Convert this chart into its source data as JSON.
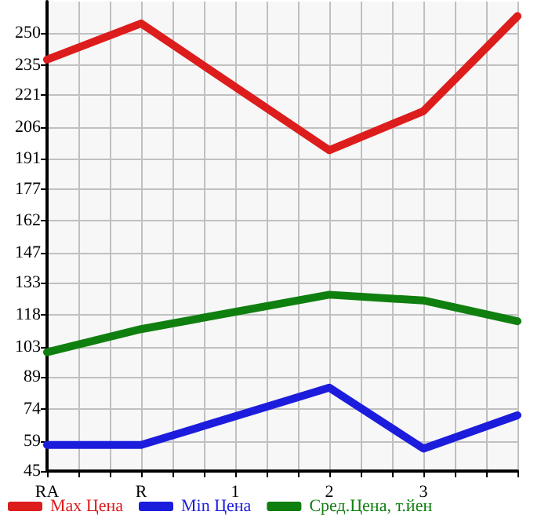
{
  "chart_data": {
    "type": "line",
    "categories": [
      "RA",
      "R",
      "1",
      "2",
      "3",
      null
    ],
    "series": [
      {
        "name": "Max Цена",
        "color": "#dd1c1c",
        "values": [
          237.5,
          254.4,
          null,
          195.1,
          213.4,
          257.8
        ]
      },
      {
        "name": "Min Цена",
        "color": "#1c1cdd",
        "values": [
          57.2,
          57.2,
          null,
          84.0,
          55.5,
          71.1
        ]
      },
      {
        "name": "Сред.Цена, т.йен",
        "color": "#0f7f0f",
        "values": [
          100.6,
          111.4,
          null,
          127.5,
          124.8,
          115.1
        ]
      }
    ],
    "ylim": [
      45,
      264.64
    ],
    "yticks": [
      45,
      59,
      74,
      89,
      103,
      118,
      133,
      147,
      162,
      177,
      191,
      206,
      221,
      235,
      250
    ],
    "grid": true,
    "legend": "bottom",
    "marker": "none",
    "line_style": "solid"
  }
}
